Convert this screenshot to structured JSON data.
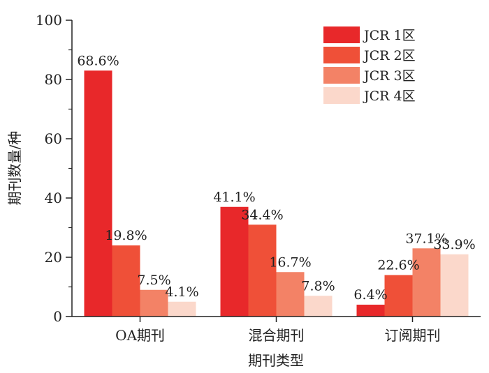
{
  "chart_data": {
    "type": "bar",
    "title": "",
    "xlabel": "期刊类型",
    "ylabel": "期刊数量/种",
    "ylim": [
      0,
      100
    ],
    "yticks": [
      0,
      20,
      40,
      60,
      80,
      100
    ],
    "categories": [
      "OA期刊",
      "混合期刊",
      "订阅期刊"
    ],
    "series": [
      {
        "name": "JCR 1区",
        "color": "#e8282a",
        "values": [
          83,
          37,
          4
        ],
        "labels": [
          "68.6%",
          "41.1%",
          "6.4%"
        ]
      },
      {
        "name": "JCR 2区",
        "color": "#ef5038",
        "values": [
          24,
          31,
          14
        ],
        "labels": [
          "19.8%",
          "34.4%",
          "22.6%"
        ]
      },
      {
        "name": "JCR 3区",
        "color": "#f38266",
        "values": [
          9,
          15,
          23
        ],
        "labels": [
          "7.5%",
          "16.7%",
          "37.1%"
        ]
      },
      {
        "name": "JCR 4区",
        "color": "#fbd8cb",
        "values": [
          5,
          7,
          21
        ],
        "labels": [
          "4.1%",
          "7.8%",
          "33.9%"
        ]
      }
    ],
    "legend_position": "top-right",
    "grid": false
  }
}
